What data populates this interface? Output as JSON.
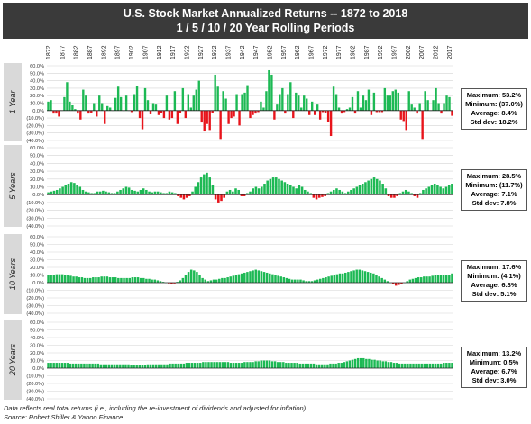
{
  "title": {
    "line1": "U.S. Stock Market Annualized Returns  -- 1872 to 2018",
    "line2": "1 / 5 / 10 / 20 Year Rolling Periods"
  },
  "footnote": {
    "line1": "Data reflects real total returns (i.e., including the re-investment of dividends and adjusted for inflation)",
    "line2": "Source: Robert Shiller & Yahoo Finance"
  },
  "colors": {
    "positive": "#1db954",
    "negative": "#e8141b",
    "band": "#d9d9d9",
    "title_bg": "#3a3a3a"
  },
  "year_ticks": [
    "1872",
    "1877",
    "1882",
    "1887",
    "1892",
    "1897",
    "1902",
    "1907",
    "1912",
    "1917",
    "1922",
    "1927",
    "1932",
    "1937",
    "1942",
    "1947",
    "1952",
    "1957",
    "1962",
    "1967",
    "1972",
    "1977",
    "1982",
    "1987",
    "1992",
    "1997",
    "2002",
    "2007",
    "2012",
    "2017"
  ],
  "y_tick_labels": [
    "60.0%",
    "50.0%",
    "40.0%",
    "30.0%",
    "20.0%",
    "10.0%",
    "0.0%",
    "(10.0%)",
    "(20.0%)",
    "(30.0%)",
    "(40.0%)"
  ],
  "chart_data": [
    {
      "type": "bar",
      "panel": "1 Year",
      "x_start": 1872,
      "x_end": 2018,
      "ylim": [
        -40,
        60
      ],
      "grid": true,
      "values": [
        12,
        14,
        -4,
        -4,
        -8,
        0,
        18,
        38,
        12,
        7,
        2,
        -4,
        -12,
        28,
        20,
        -4,
        -3,
        10,
        -8,
        20,
        10,
        -18,
        6,
        4,
        0,
        17,
        32,
        18,
        0,
        20,
        0,
        -2,
        22,
        33,
        -10,
        -25,
        30,
        14,
        -5,
        10,
        8,
        -6,
        -3,
        -10,
        20,
        -12,
        -10,
        26,
        -18,
        -3,
        30,
        -10,
        22,
        4,
        20,
        28,
        40,
        -16,
        -28,
        -18,
        -26,
        -3,
        48,
        32,
        -38,
        26,
        16,
        -18,
        -10,
        -8,
        22,
        -20,
        22,
        24,
        34,
        -10,
        -6,
        -4,
        -2,
        12,
        4,
        26,
        54,
        48,
        -12,
        8,
        22,
        30,
        -4,
        22,
        38,
        -10,
        24,
        20,
        4,
        20,
        16,
        -6,
        12,
        -6,
        8,
        -12,
        -2,
        -3,
        -15,
        -34,
        32,
        22,
        4,
        -4,
        -2,
        2,
        4,
        18,
        -4,
        26,
        4,
        20,
        14,
        28,
        -6,
        24,
        -2,
        -2,
        -2,
        30,
        20,
        20,
        26,
        28,
        24,
        -12,
        -14,
        -26,
        26,
        8,
        4,
        -4,
        10,
        -38,
        26,
        14,
        0,
        14,
        30,
        10,
        -4,
        10,
        20,
        18,
        -7
      ],
      "summary": {
        "max": "Maximum: 53.2%",
        "min": "Minimum: (37.0%)",
        "avg": "Average: 8.4%",
        "std": "Std dev: 18.2%"
      }
    },
    {
      "type": "bar",
      "panel": "5 Years",
      "x_start": 1872,
      "x_end": 2018,
      "ylim": [
        -40,
        60
      ],
      "grid": true,
      "values": [
        3,
        4,
        5,
        6,
        8,
        10,
        12,
        14,
        16,
        15,
        12,
        10,
        6,
        4,
        3,
        2,
        2,
        4,
        4,
        5,
        4,
        3,
        2,
        2,
        4,
        6,
        8,
        10,
        9,
        6,
        5,
        4,
        6,
        8,
        6,
        4,
        3,
        4,
        4,
        3,
        2,
        2,
        4,
        3,
        2,
        -2,
        -4,
        -6,
        -4,
        -2,
        4,
        10,
        16,
        22,
        26,
        28,
        22,
        12,
        -6,
        -10,
        -8,
        -4,
        4,
        6,
        4,
        8,
        6,
        -2,
        -2,
        2,
        4,
        8,
        10,
        8,
        10,
        14,
        18,
        20,
        22,
        22,
        20,
        18,
        16,
        14,
        12,
        10,
        8,
        12,
        10,
        6,
        4,
        2,
        -4,
        -6,
        -4,
        -3,
        -2,
        2,
        4,
        6,
        8,
        6,
        4,
        2,
        4,
        6,
        8,
        10,
        12,
        14,
        16,
        18,
        20,
        22,
        20,
        18,
        14,
        8,
        -2,
        -4,
        -4,
        -2,
        2,
        4,
        6,
        4,
        2,
        -2,
        -4,
        2,
        6,
        8,
        10,
        12,
        14,
        12,
        10,
        8,
        10,
        12,
        14
      ],
      "summary": {
        "max": "Maximum: 28.5%",
        "min": "Minimum: (11.7%)",
        "avg": "Average: 7.1%",
        "std": "Std dev: 7.8%"
      }
    },
    {
      "type": "bar",
      "panel": "10 Years",
      "x_start": 1872,
      "x_end": 2018,
      "ylim": [
        -40,
        60
      ],
      "grid": true,
      "values": [
        10,
        10,
        10,
        11,
        11,
        11,
        10,
        10,
        9,
        8,
        8,
        7,
        7,
        6,
        6,
        6,
        7,
        7,
        7,
        8,
        8,
        8,
        7,
        7,
        7,
        6,
        6,
        6,
        6,
        6,
        7,
        7,
        7,
        6,
        6,
        5,
        5,
        4,
        4,
        3,
        2,
        1,
        0,
        -1,
        -2,
        -1,
        1,
        3,
        6,
        10,
        14,
        17,
        16,
        14,
        10,
        6,
        4,
        2,
        3,
        4,
        4,
        5,
        6,
        6,
        7,
        8,
        9,
        10,
        11,
        12,
        13,
        14,
        15,
        16,
        17,
        16,
        15,
        14,
        13,
        12,
        11,
        10,
        9,
        8,
        7,
        6,
        5,
        4,
        4,
        4,
        4,
        3,
        2,
        2,
        2,
        3,
        4,
        5,
        6,
        7,
        8,
        9,
        10,
        11,
        12,
        12,
        13,
        14,
        15,
        16,
        17,
        17,
        16,
        15,
        14,
        13,
        12,
        10,
        8,
        6,
        4,
        2,
        0,
        -2,
        -4,
        -3,
        -2,
        0,
        2,
        4,
        5,
        6,
        7,
        7,
        8,
        8,
        8,
        9,
        10,
        10,
        10,
        10,
        10,
        10,
        12
      ],
      "summary": {
        "max": "Maximum: 17.6%",
        "min": "Minimum: (4.1%)",
        "avg": "Average: 6.8%",
        "std": "Std dev: 5.1%"
      }
    },
    {
      "type": "bar",
      "panel": "20 Years",
      "x_start": 1872,
      "x_end": 2018,
      "ylim": [
        -40,
        60
      ],
      "grid": true,
      "values": [
        7,
        7,
        7,
        7,
        7,
        7,
        7,
        7,
        6,
        6,
        6,
        6,
        6,
        6,
        6,
        6,
        6,
        6,
        6,
        5,
        5,
        5,
        5,
        5,
        5,
        5,
        5,
        5,
        5,
        5,
        4,
        4,
        4,
        4,
        4,
        4,
        5,
        5,
        5,
        5,
        5,
        5,
        5,
        5,
        6,
        6,
        6,
        6,
        6,
        6,
        7,
        7,
        7,
        7,
        7,
        7,
        8,
        8,
        8,
        8,
        8,
        8,
        8,
        8,
        8,
        8,
        7,
        7,
        7,
        7,
        7,
        8,
        8,
        8,
        8,
        9,
        9,
        10,
        10,
        10,
        10,
        9,
        9,
        8,
        8,
        8,
        7,
        7,
        7,
        7,
        7,
        6,
        6,
        6,
        6,
        6,
        6,
        5,
        5,
        5,
        5,
        5,
        6,
        6,
        6,
        7,
        7,
        8,
        9,
        10,
        11,
        12,
        13,
        13,
        13,
        12,
        12,
        11,
        11,
        10,
        10,
        9,
        9,
        8,
        8,
        7,
        7,
        6,
        6,
        6,
        6,
        6,
        6,
        6,
        6,
        6,
        6,
        6,
        6,
        6,
        6,
        6,
        6,
        7,
        7,
        7,
        7
      ],
      "summary": {
        "max": "Maximum: 13.2%",
        "min": "Minimum: 0.5%",
        "avg": "Average: 6.7%",
        "std": "Std dev: 3.0%"
      }
    }
  ]
}
